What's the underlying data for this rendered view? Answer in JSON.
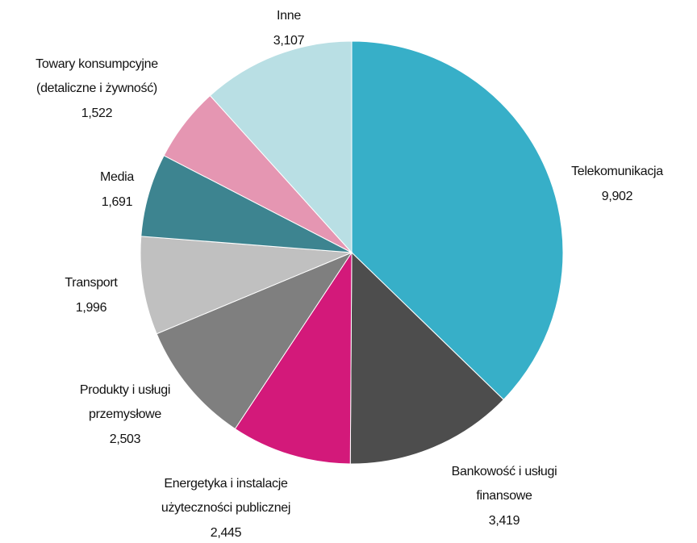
{
  "chart_data": {
    "type": "pie",
    "categories": [
      [
        "Telekomunikacja"
      ],
      [
        "Bankowość i usługi",
        "finansowe"
      ],
      [
        "Energetyka i instalacje",
        "użyteczności publicznej"
      ],
      [
        "Produkty i usługi",
        "przemysłowe"
      ],
      [
        "Transport"
      ],
      [
        "Media"
      ],
      [
        "Towary konsumpcyjne",
        "(detaliczne i  żywność)"
      ],
      [
        "Inne"
      ]
    ],
    "values": [
      9902,
      3419,
      2445,
      2503,
      1996,
      1691,
      1522,
      3107
    ],
    "value_labels": [
      "9,902",
      "3,419",
      "2,445",
      "2,503",
      "1,996",
      "1,691",
      "1,522",
      "3,107"
    ],
    "colors": [
      "#37afc8",
      "#4d4d4d",
      "#d3197a",
      "#7f7f7f",
      "#c0c0c0",
      "#3d8490",
      "#e596b2",
      "#b9dfe4"
    ]
  }
}
